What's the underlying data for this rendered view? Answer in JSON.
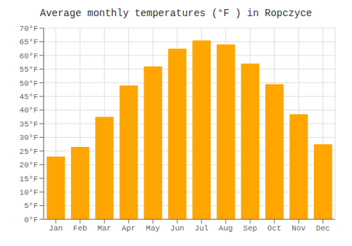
{
  "chart_data": {
    "type": "bar",
    "title": "Average monthly temperatures (°F ) in Ropczyce",
    "categories": [
      "Jan",
      "Feb",
      "Mar",
      "Apr",
      "May",
      "Jun",
      "Jul",
      "Aug",
      "Sep",
      "Oct",
      "Nov",
      "Dec"
    ],
    "values": [
      23,
      26.5,
      37.5,
      49,
      56,
      62.5,
      65.5,
      64,
      57,
      49.5,
      38.5,
      27.5
    ],
    "color": "#FFA500",
    "ylim": [
      0,
      70
    ],
    "yticks": [
      {
        "value": 0,
        "label": "0°F"
      },
      {
        "value": 5,
        "label": "5°F"
      },
      {
        "value": 10,
        "label": "10°F"
      },
      {
        "value": 15,
        "label": "15°F"
      },
      {
        "value": 20,
        "label": "20°F"
      },
      {
        "value": 25,
        "label": "25°F"
      },
      {
        "value": 30,
        "label": "30°F"
      },
      {
        "value": 35,
        "label": "35°F"
      },
      {
        "value": 40,
        "label": "40°F"
      },
      {
        "value": 45,
        "label": "45°F"
      },
      {
        "value": 50,
        "label": "50°F"
      },
      {
        "value": 55,
        "label": "55°F"
      },
      {
        "value": 60,
        "label": "60°F"
      },
      {
        "value": 65,
        "label": "65°F"
      },
      {
        "value": 70,
        "label": "70°F"
      }
    ],
    "grid": true
  }
}
